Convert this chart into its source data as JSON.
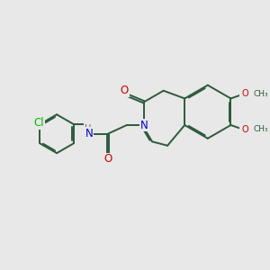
{
  "background_color": "#e8e8e8",
  "bond_color": "#2d5a3d",
  "bond_width": 1.4,
  "atom_colors": {
    "N": "#0000cc",
    "O": "#cc0000",
    "Cl": "#00bb00",
    "H": "#666666",
    "C": "#2d5a3d"
  },
  "font_size_atom": 8.5,
  "font_size_small": 7.0,
  "font_size_methyl": 6.5
}
